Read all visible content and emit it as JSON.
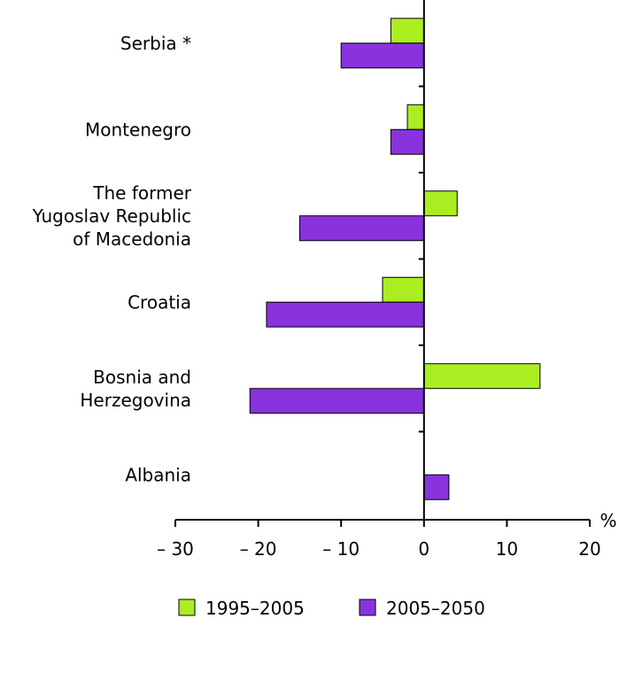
{
  "chart_data": {
    "type": "bar",
    "orientation": "horizontal",
    "unit_label": "%",
    "categories": [
      [
        "Serbia *"
      ],
      [
        "Montenegro"
      ],
      [
        "The former",
        "Yugoslav Republic",
        "of Macedonia"
      ],
      [
        "Croatia"
      ],
      [
        "Bosnia and",
        "Herzegovina"
      ],
      [
        "Albania"
      ]
    ],
    "series": [
      {
        "name": "1995–2005",
        "color": "#aaee22",
        "values": [
          -4,
          -2,
          4,
          -5,
          14,
          null
        ]
      },
      {
        "name": "2005–2050",
        "color": "#8833dd",
        "values": [
          -10,
          -4,
          -15,
          -19,
          -21,
          3
        ]
      }
    ],
    "xlim": [
      -30,
      20
    ],
    "xticks": [
      -30,
      -20,
      -10,
      0,
      10,
      20
    ],
    "xtick_labels": [
      "– 30",
      "– 20",
      "– 10",
      "0",
      "10",
      "20"
    ],
    "legend_position": "bottom"
  }
}
